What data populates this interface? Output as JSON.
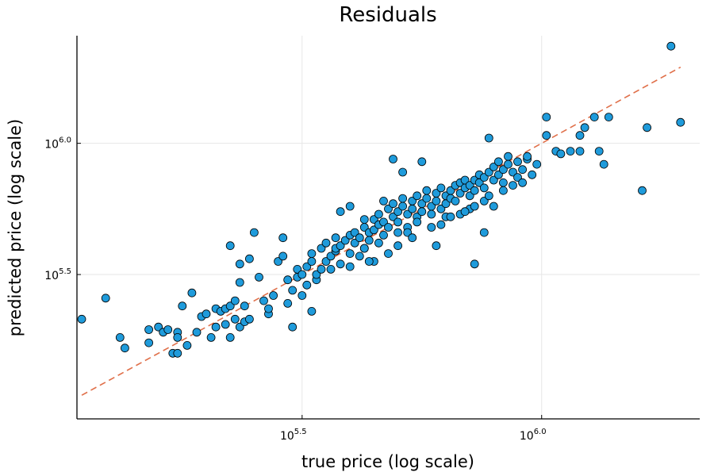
{
  "chart_data": {
    "type": "scatter",
    "title": "Residuals",
    "xlabel": "true price (log scale)",
    "ylabel": "predicted price (log scale)",
    "scale": "log10",
    "xlim_log10": [
      5.03,
      6.33
    ],
    "ylim_log10": [
      4.95,
      6.41
    ],
    "grid": true,
    "legend": "none",
    "colors": {
      "points": "#1f9bdb",
      "reference_line": "#e0704a",
      "point_edge": "#000000"
    },
    "x_ticks": [
      {
        "base": "10",
        "exp": "5.5",
        "log10": 5.5
      },
      {
        "base": "10",
        "exp": "6.0",
        "log10": 6.0
      }
    ],
    "y_ticks": [
      {
        "base": "10",
        "exp": "5.5",
        "log10": 5.5
      },
      {
        "base": "10",
        "exp": "6.0",
        "log10": 6.0
      }
    ],
    "reference_line": {
      "style": "dashed",
      "from_log10": [
        5.04,
        5.04
      ],
      "to_log10": [
        6.29,
        6.29
      ]
    },
    "points_log10": [
      [
        5.04,
        5.33
      ],
      [
        5.09,
        5.41
      ],
      [
        5.12,
        5.26
      ],
      [
        5.13,
        5.22
      ],
      [
        5.18,
        5.24
      ],
      [
        5.18,
        5.29
      ],
      [
        5.2,
        5.3
      ],
      [
        5.21,
        5.28
      ],
      [
        5.22,
        5.29
      ],
      [
        5.23,
        5.2
      ],
      [
        5.24,
        5.2
      ],
      [
        5.24,
        5.28
      ],
      [
        5.24,
        5.26
      ],
      [
        5.25,
        5.38
      ],
      [
        5.26,
        5.23
      ],
      [
        5.27,
        5.43
      ],
      [
        5.28,
        5.28
      ],
      [
        5.29,
        5.34
      ],
      [
        5.3,
        5.35
      ],
      [
        5.31,
        5.26
      ],
      [
        5.32,
        5.3
      ],
      [
        5.32,
        5.37
      ],
      [
        5.33,
        5.36
      ],
      [
        5.34,
        5.31
      ],
      [
        5.34,
        5.37
      ],
      [
        5.35,
        5.26
      ],
      [
        5.35,
        5.38
      ],
      [
        5.36,
        5.33
      ],
      [
        5.36,
        5.4
      ],
      [
        5.37,
        5.3
      ],
      [
        5.37,
        5.47
      ],
      [
        5.38,
        5.38
      ],
      [
        5.38,
        5.32
      ],
      [
        5.39,
        5.33
      ],
      [
        5.35,
        5.61
      ],
      [
        5.37,
        5.54
      ],
      [
        5.39,
        5.56
      ],
      [
        5.4,
        5.66
      ],
      [
        5.41,
        5.49
      ],
      [
        5.42,
        5.4
      ],
      [
        5.43,
        5.35
      ],
      [
        5.43,
        5.37
      ],
      [
        5.44,
        5.42
      ],
      [
        5.45,
        5.55
      ],
      [
        5.46,
        5.57
      ],
      [
        5.47,
        5.48
      ],
      [
        5.47,
        5.39
      ],
      [
        5.48,
        5.3
      ],
      [
        5.48,
        5.44
      ],
      [
        5.49,
        5.49
      ],
      [
        5.49,
        5.52
      ],
      [
        5.5,
        5.5
      ],
      [
        5.5,
        5.42
      ],
      [
        5.51,
        5.53
      ],
      [
        5.51,
        5.46
      ],
      [
        5.52,
        5.55
      ],
      [
        5.52,
        5.58
      ],
      [
        5.53,
        5.48
      ],
      [
        5.53,
        5.5
      ],
      [
        5.54,
        5.52
      ],
      [
        5.54,
        5.6
      ],
      [
        5.55,
        5.62
      ],
      [
        5.55,
        5.55
      ],
      [
        5.56,
        5.57
      ],
      [
        5.56,
        5.52
      ],
      [
        5.57,
        5.59
      ],
      [
        5.57,
        5.6
      ],
      [
        5.58,
        5.61
      ],
      [
        5.58,
        5.54
      ],
      [
        5.59,
        5.63
      ],
      [
        5.6,
        5.65
      ],
      [
        5.6,
        5.58
      ],
      [
        5.61,
        5.62
      ],
      [
        5.61,
        5.66
      ],
      [
        5.62,
        5.64
      ],
      [
        5.62,
        5.57
      ],
      [
        5.63,
        5.6
      ],
      [
        5.63,
        5.68
      ],
      [
        5.64,
        5.66
      ],
      [
        5.64,
        5.63
      ],
      [
        5.65,
        5.71
      ],
      [
        5.65,
        5.67
      ],
      [
        5.66,
        5.69
      ],
      [
        5.66,
        5.73
      ],
      [
        5.67,
        5.65
      ],
      [
        5.67,
        5.7
      ],
      [
        5.68,
        5.68
      ],
      [
        5.68,
        5.75
      ],
      [
        5.69,
        5.72
      ],
      [
        5.69,
        5.77
      ],
      [
        5.7,
        5.74
      ],
      [
        5.7,
        5.7
      ],
      [
        5.71,
        5.76
      ],
      [
        5.71,
        5.79
      ],
      [
        5.72,
        5.73
      ],
      [
        5.72,
        5.68
      ],
      [
        5.73,
        5.75
      ],
      [
        5.73,
        5.78
      ],
      [
        5.74,
        5.8
      ],
      [
        5.74,
        5.72
      ],
      [
        5.75,
        5.74
      ],
      [
        5.75,
        5.77
      ],
      [
        5.76,
        5.79
      ],
      [
        5.76,
        5.82
      ],
      [
        5.77,
        5.76
      ],
      [
        5.77,
        5.73
      ],
      [
        5.78,
        5.78
      ],
      [
        5.78,
        5.81
      ],
      [
        5.79,
        5.83
      ],
      [
        5.79,
        5.75
      ],
      [
        5.8,
        5.77
      ],
      [
        5.8,
        5.8
      ],
      [
        5.81,
        5.82
      ],
      [
        5.81,
        5.79
      ],
      [
        5.82,
        5.84
      ],
      [
        5.82,
        5.78
      ],
      [
        5.83,
        5.81
      ],
      [
        5.83,
        5.85
      ],
      [
        5.84,
        5.83
      ],
      [
        5.84,
        5.86
      ],
      [
        5.85,
        5.8
      ],
      [
        5.85,
        5.84
      ],
      [
        5.86,
        5.82
      ],
      [
        5.86,
        5.86
      ],
      [
        5.87,
        5.85
      ],
      [
        5.87,
        5.88
      ],
      [
        5.88,
        5.83
      ],
      [
        5.88,
        5.87
      ],
      [
        5.89,
        5.89
      ],
      [
        5.9,
        5.86
      ],
      [
        5.9,
        5.91
      ],
      [
        5.91,
        5.88
      ],
      [
        5.91,
        5.93
      ],
      [
        5.92,
        5.9
      ],
      [
        5.92,
        5.85
      ],
      [
        5.93,
        5.95
      ],
      [
        5.93,
        5.92
      ],
      [
        5.94,
        5.89
      ],
      [
        5.95,
        5.87
      ],
      [
        5.95,
        5.93
      ],
      [
        5.96,
        5.9
      ],
      [
        5.97,
        5.94
      ],
      [
        5.98,
        5.88
      ],
      [
        5.99,
        5.92
      ],
      [
        6.01,
        6.03
      ],
      [
        6.01,
        6.1
      ],
      [
        6.03,
        5.97
      ],
      [
        6.04,
        5.96
      ],
      [
        6.06,
        5.97
      ],
      [
        6.08,
        6.03
      ],
      [
        6.08,
        5.97
      ],
      [
        6.09,
        6.06
      ],
      [
        6.11,
        6.1
      ],
      [
        6.12,
        5.97
      ],
      [
        6.13,
        5.92
      ],
      [
        6.14,
        6.1
      ],
      [
        6.21,
        5.82
      ],
      [
        6.22,
        6.06
      ],
      [
        6.27,
        6.37
      ],
      [
        6.29,
        6.08
      ],
      [
        5.46,
        5.64
      ],
      [
        5.52,
        5.36
      ],
      [
        5.6,
        5.53
      ],
      [
        5.69,
        5.94
      ],
      [
        5.71,
        5.89
      ],
      [
        5.75,
        5.93
      ],
      [
        5.78,
        5.61
      ],
      [
        5.86,
        5.54
      ],
      [
        5.88,
        5.66
      ],
      [
        5.89,
        6.02
      ],
      [
        5.57,
        5.64
      ],
      [
        5.58,
        5.74
      ],
      [
        5.6,
        5.76
      ],
      [
        5.63,
        5.71
      ],
      [
        5.65,
        5.55
      ],
      [
        5.67,
        5.78
      ],
      [
        5.7,
        5.66
      ],
      [
        5.72,
        5.66
      ],
      [
        5.74,
        5.7
      ],
      [
        5.77,
        5.68
      ],
      [
        5.8,
        5.72
      ],
      [
        5.83,
        5.73
      ],
      [
        5.85,
        5.75
      ],
      [
        5.88,
        5.78
      ],
      [
        5.9,
        5.76
      ],
      [
        5.92,
        5.82
      ],
      [
        5.94,
        5.84
      ],
      [
        5.96,
        5.85
      ],
      [
        5.97,
        5.95
      ],
      [
        5.63,
        5.6
      ],
      [
        5.64,
        5.55
      ],
      [
        5.66,
        5.62
      ],
      [
        5.68,
        5.58
      ],
      [
        5.7,
        5.61
      ],
      [
        5.73,
        5.64
      ],
      [
        5.79,
        5.69
      ],
      [
        5.81,
        5.72
      ],
      [
        5.84,
        5.74
      ],
      [
        5.86,
        5.76
      ],
      [
        5.89,
        5.8
      ]
    ]
  }
}
